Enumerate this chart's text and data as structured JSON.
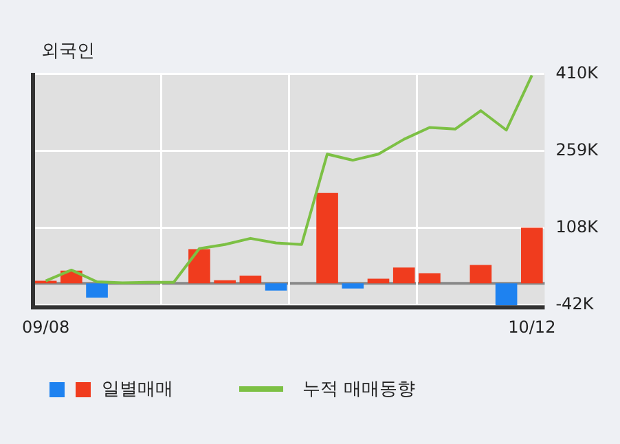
{
  "chart_data": {
    "type": "bar",
    "title": "외국인",
    "categories": [
      "09/08",
      null,
      null,
      null,
      null,
      null,
      null,
      null,
      null,
      null,
      null,
      null,
      null,
      null,
      null,
      null,
      null,
      null,
      null,
      "10/12"
    ],
    "series": [
      {
        "name": "일별매매",
        "colors": [
          "#f03c1e",
          "#f03c1e",
          "#1e82f0",
          "#f03c1e",
          "#f03c1e",
          "#f03c1e",
          "#f03c1e",
          "#f03c1e",
          "#f03c1e",
          "#1e82f0",
          "#f03c1e",
          "#f03c1e",
          "#1e82f0",
          "#f03c1e",
          "#f03c1e",
          "#f03c1e",
          "#f03c1e",
          "#f03c1e",
          "#1e82f0",
          "#f03c1e"
        ],
        "values": [
          5,
          25,
          -28,
          null,
          null,
          null,
          67,
          6,
          15,
          -14,
          null,
          177,
          -10,
          9,
          31,
          20,
          null,
          36,
          -43,
          109
        ]
      },
      {
        "name": "누적 매매동향",
        "type": "line",
        "color": "#7cc044",
        "values": [
          5,
          26,
          3,
          1,
          2,
          2,
          68,
          76,
          88,
          79,
          76,
          253,
          241,
          253,
          282,
          305,
          302,
          338,
          300,
          407
        ]
      }
    ],
    "ylim": [
      -47,
      412
    ],
    "yticks": [
      {
        "value": 410,
        "label": "410K"
      },
      {
        "value": 259,
        "label": "259K"
      },
      {
        "value": 108,
        "label": "108K"
      },
      {
        "value": -42,
        "label": "-42K"
      }
    ],
    "grid": true,
    "legend": "bottom"
  }
}
